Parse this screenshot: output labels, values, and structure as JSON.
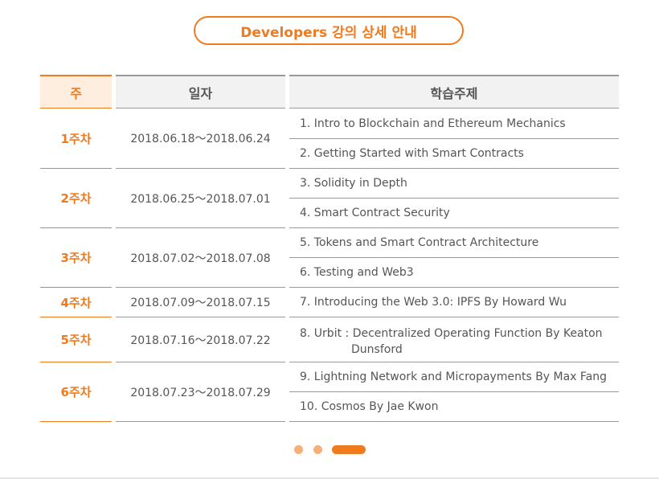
{
  "title": "Developers 강의 상세 안내",
  "headers": {
    "week": "주",
    "date": "일자",
    "topic": "학습주제"
  },
  "weeks": [
    {
      "week": "1주차",
      "dates": "2018.06.18～2018.06.24"
    },
    {
      "week": "2주차",
      "dates": "2018.06.25～2018.07.01"
    },
    {
      "week": "3주차",
      "dates": "2018.07.02～2018.07.08"
    },
    {
      "week": "4주차",
      "dates": "2018.07.09～2018.07.15"
    },
    {
      "week": "5주차",
      "dates": "2018.07.16～2018.07.22"
    },
    {
      "week": "6주차",
      "dates": "2018.07.23～2018.07.29"
    }
  ],
  "topics": [
    "1. Intro to Blockchain and Ethereum Mechanics",
    "2. Getting Started with Smart Contracts",
    "3. Solidity in Depth",
    "4. Smart Contract Security",
    "5. Tokens and Smart Contract Architecture",
    "6. Testing and Web3",
    "7. Introducing the Web 3.0: IPFS By Howard Wu",
    "8. Urbit : Decentralized Operating Function By Keaton",
    "Dunsford",
    "9. Lightning Network and Micropayments By Max Fang",
    "10. Cosmos By Jae Kwon"
  ],
  "colors": {
    "accent": "#f07a1e",
    "accent_light": "#f5b07a",
    "header_bg": "#f2f2f2",
    "week_header_bg": "#fdeee0"
  },
  "pagination": {
    "pages": 3,
    "active": 3
  }
}
